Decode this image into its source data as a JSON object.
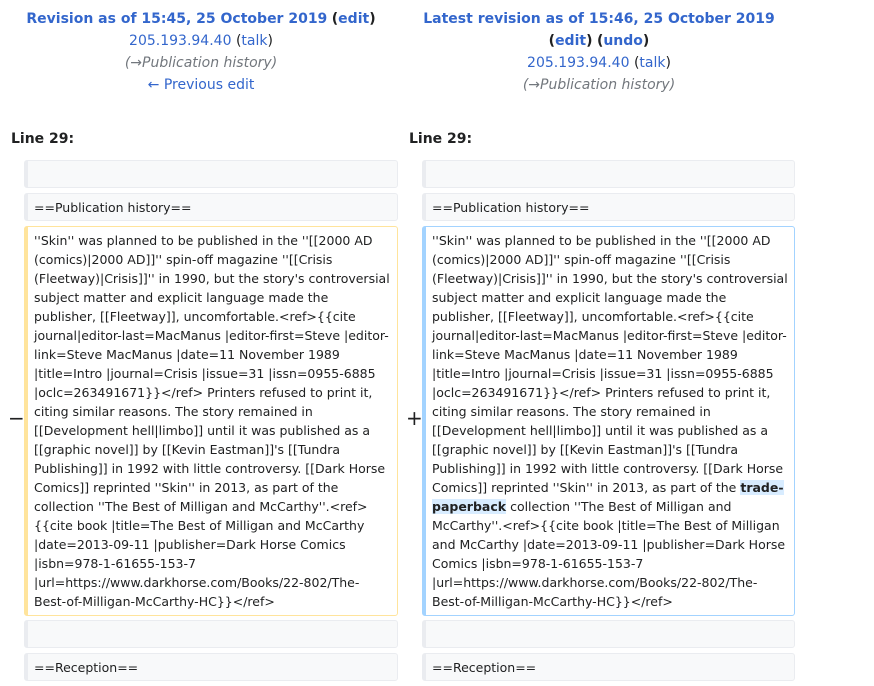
{
  "left": {
    "title_prefix": "Revision as of 15:45, 25 October 2019",
    "edit": "edit",
    "user": "205.193.94.40",
    "talk": "talk",
    "summary": "(→Publication history)",
    "prev": "← Previous edit",
    "line_no": "Line 29:"
  },
  "right": {
    "title_prefix": "Latest revision as of 15:46, 25 October 2019",
    "edit": "edit",
    "undo": "undo",
    "user": "205.193.94.40",
    "talk": "talk",
    "summary": "(→Publication history)",
    "line_no": "Line 29:"
  },
  "ctx": {
    "pub_history": "==Publication history==",
    "reception": "==Reception=="
  },
  "diff": {
    "old_text": "''Skin'' was planned to be published in the ''[[2000 AD (comics)|2000 AD]]'' spin-off magazine ''[[Crisis (Fleetway)|Crisis]]'' in 1990, but the story's controversial subject matter and explicit language made the publisher, [[Fleetway]], uncomfortable.<ref>{{cite journal|editor-last=MacManus |editor-first=Steve |editor-link=Steve MacManus |date=11 November 1989 |title=Intro |journal=Crisis |issue=31 |issn=0955-6885 |oclc=263491671}}</ref> Printers refused to print it, citing similar reasons. The story remained in [[Development hell|limbo]] until it was published as a [[graphic novel]] by [[Kevin Eastman]]'s [[Tundra Publishing]] in 1992 with little controversy. [[Dark Horse Comics]] reprinted ''Skin'' in 2013, as part of the collection ''The Best of Milligan and McCarthy''.<ref>{{cite book |title=The Best of Milligan and McCarthy |date=2013-09-11 |publisher=Dark Horse Comics |isbn=978-1-61655-153-7 |url=https://www.darkhorse.com/Books/22-802/The-Best-of-Milligan-McCarthy-HC}}</ref>",
    "new_before": "''Skin'' was planned to be published in the ''[[2000 AD (comics)|2000 AD]]'' spin-off magazine ''[[Crisis (Fleetway)|Crisis]]'' in 1990, but the story's controversial subject matter and explicit language made the publisher, [[Fleetway]], uncomfortable.<ref>{{cite journal|editor-last=MacManus |editor-first=Steve |editor-link=Steve MacManus |date=11 November 1989 |title=Intro |journal=Crisis |issue=31 |issn=0955-6885 |oclc=263491671}}</ref> Printers refused to print it, citing similar reasons. The story remained in [[Development hell|limbo]] until it was published as a [[graphic novel]] by [[Kevin Eastman]]'s [[Tundra Publishing]] in 1992 with little controversy. [[Dark Horse Comics]] reprinted ''Skin'' in 2013, as part of the ",
    "new_inserted": "trade-paperback",
    "new_after": " collection ''The Best of Milligan and McCarthy''.<ref>{{cite book |title=The Best of Milligan and McCarthy |date=2013-09-11 |publisher=Dark Horse Comics |isbn=978-1-61655-153-7 |url=https://www.darkhorse.com/Books/22-802/The-Best-of-Milligan-McCarthy-HC}}</ref>",
    "minus": "−",
    "plus": "+"
  }
}
